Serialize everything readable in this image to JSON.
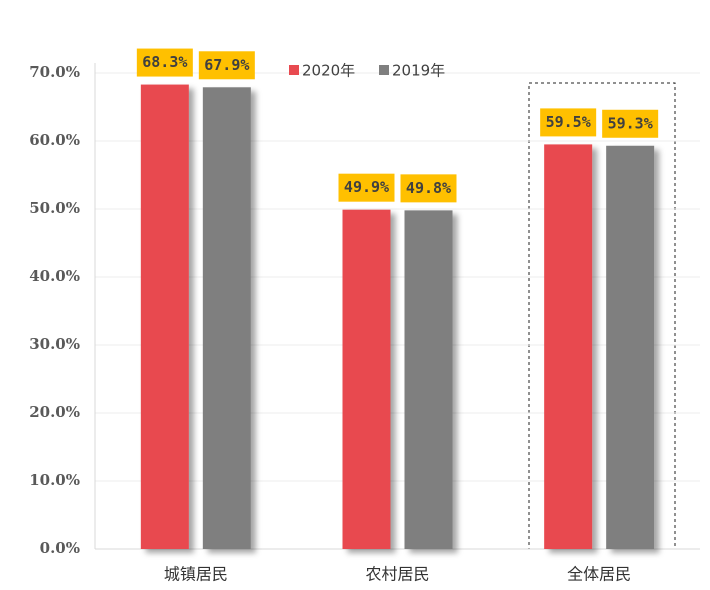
{
  "chart_data": {
    "type": "bar",
    "categories": [
      "城镇居民",
      "农村居民",
      "全体居民"
    ],
    "series": [
      {
        "name": "2020年",
        "color": "#e84a50",
        "values": [
          68.3,
          49.9,
          59.5
        ],
        "value_labels": [
          "68.3%",
          "49.9%",
          "59.5%"
        ]
      },
      {
        "name": "2019年",
        "color": "#7f7f7f",
        "values": [
          67.9,
          49.8,
          59.3
        ],
        "value_labels": [
          "67.9%",
          "49.8%",
          "59.3%"
        ]
      }
    ],
    "ylim": [
      0,
      70
    ],
    "yticks": [
      {
        "value": 0,
        "label": "0.0%"
      },
      {
        "value": 10,
        "label": "10.0%"
      },
      {
        "value": 20,
        "label": "20.0%"
      },
      {
        "value": 30,
        "label": "30.0%"
      },
      {
        "value": 40,
        "label": "40.0%"
      },
      {
        "value": 50,
        "label": "50.0%"
      },
      {
        "value": 60,
        "label": "60.0%"
      },
      {
        "value": 70,
        "label": "70.0%"
      }
    ],
    "grid": true,
    "label_background": "#ffc000"
  }
}
